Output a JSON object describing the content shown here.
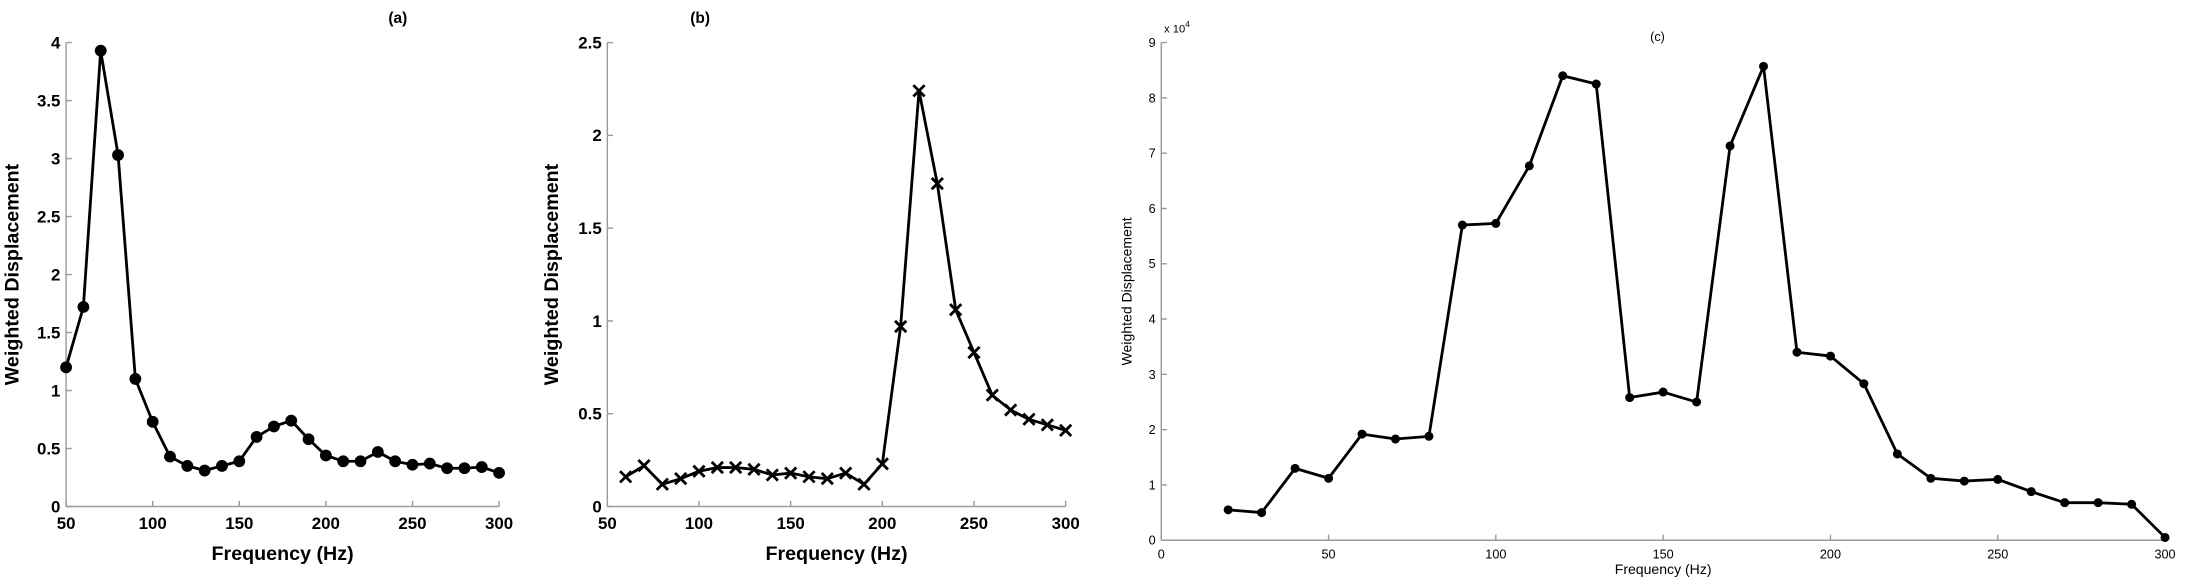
{
  "chart_data": [
    {
      "type": "line",
      "title": "(a)",
      "xlabel": "Frequency (Hz)",
      "ylabel": "Weighted Displacement",
      "xlim": [
        50,
        300
      ],
      "ylim": [
        0,
        4
      ],
      "xticks": [
        "50",
        "100",
        "150",
        "200",
        "250",
        "300"
      ],
      "yticks": [
        "0",
        "0.5",
        "1",
        "1.5",
        "2",
        "2.5",
        "3",
        "3.5",
        "4"
      ],
      "marker": "circle",
      "x": [
        50,
        60,
        70,
        80,
        90,
        100,
        110,
        120,
        130,
        140,
        150,
        160,
        170,
        180,
        190,
        200,
        210,
        220,
        230,
        240,
        250,
        260,
        270,
        280,
        290,
        300
      ],
      "y": [
        1.2,
        1.72,
        3.93,
        3.03,
        1.1,
        0.73,
        0.43,
        0.35,
        0.31,
        0.35,
        0.39,
        0.6,
        0.69,
        0.74,
        0.58,
        0.44,
        0.39,
        0.39,
        0.47,
        0.39,
        0.36,
        0.37,
        0.33,
        0.33,
        0.34,
        0.29
      ]
    },
    {
      "type": "line",
      "title": "(b)",
      "xlabel": "Frequency (Hz)",
      "ylabel": "Weighted Displacement",
      "xlim": [
        50,
        300
      ],
      "ylim": [
        0,
        2.5
      ],
      "xticks": [
        "50",
        "100",
        "150",
        "200",
        "250",
        "300"
      ],
      "yticks": [
        "0",
        "0.5",
        "1",
        "1.5",
        "2",
        "2.5"
      ],
      "marker": "x",
      "x": [
        60,
        70,
        80,
        90,
        100,
        110,
        120,
        130,
        140,
        150,
        160,
        170,
        180,
        190,
        200,
        210,
        220,
        230,
        240,
        250,
        260,
        270,
        280,
        290,
        300
      ],
      "y": [
        0.16,
        0.22,
        0.12,
        0.15,
        0.19,
        0.21,
        0.21,
        0.2,
        0.17,
        0.18,
        0.16,
        0.15,
        0.18,
        0.12,
        0.23,
        0.97,
        2.24,
        1.74,
        1.06,
        0.83,
        0.6,
        0.52,
        0.47,
        0.44,
        0.41
      ]
    },
    {
      "type": "line",
      "title": "(c)",
      "xlabel": "Frequency (Hz)",
      "ylabel": "Weighted Displacement",
      "y_multiplier": "x 10",
      "y_multiplier_exp": "4",
      "xlim": [
        0,
        300
      ],
      "ylim": [
        0,
        90000
      ],
      "xticks": [
        "0",
        "50",
        "100",
        "150",
        "200",
        "250",
        "300"
      ],
      "yticks": [
        "0",
        "1",
        "2",
        "3",
        "4",
        "5",
        "6",
        "7",
        "8",
        "9"
      ],
      "marker": "circle",
      "x": [
        20,
        30,
        40,
        50,
        60,
        70,
        80,
        90,
        100,
        110,
        120,
        130,
        140,
        150,
        160,
        170,
        180,
        190,
        200,
        210,
        220,
        230,
        240,
        250,
        260,
        270,
        280,
        290,
        300
      ],
      "y": [
        5500,
        5000,
        13000,
        11200,
        19200,
        18300,
        18800,
        57000,
        57300,
        67700,
        84000,
        82500,
        25800,
        26800,
        25000,
        71300,
        85700,
        34000,
        33300,
        28300,
        15600,
        11200,
        10700,
        11000,
        8800,
        6800,
        6800,
        6500,
        500
      ]
    }
  ]
}
